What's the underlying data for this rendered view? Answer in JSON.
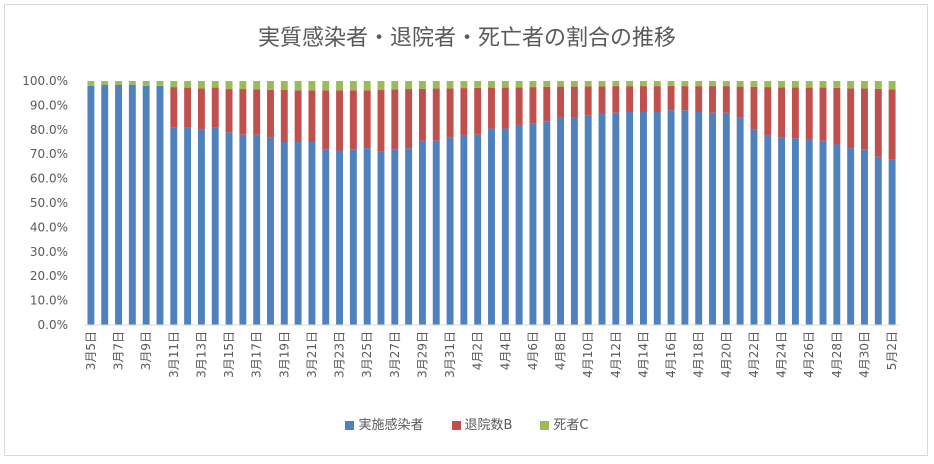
{
  "chart_data": {
    "type": "bar",
    "stacked": true,
    "title": "実質感染者・退院者・死亡者の割合の推移",
    "categories": [
      "3月5日",
      "3月6日",
      "3月7日",
      "3月8日",
      "3月9日",
      "3月10日",
      "3月11日",
      "3月12日",
      "3月13日",
      "3月14日",
      "3月15日",
      "3月16日",
      "3月17日",
      "3月18日",
      "3月19日",
      "3月20日",
      "3月21日",
      "3月22日",
      "3月23日",
      "3月24日",
      "3月25日",
      "3月26日",
      "3月27日",
      "3月28日",
      "3月29日",
      "3月30日",
      "3月31日",
      "4月1日",
      "4月2日",
      "4月3日",
      "4月4日",
      "4月5日",
      "4月6日",
      "4月7日",
      "4月8日",
      "4月9日",
      "4月10日",
      "4月11日",
      "4月12日",
      "4月13日",
      "4月14日",
      "4月15日",
      "4月16日",
      "4月17日",
      "4月18日",
      "4月19日",
      "4月20日",
      "4月21日",
      "4月22日",
      "4月23日",
      "4月24日",
      "4月25日",
      "4月26日",
      "4月27日",
      "4月28日",
      "4月29日",
      "4月30日",
      "5月1日",
      "5月2日"
    ],
    "x_tick_labels": [
      "3月5日",
      "",
      "3月7日",
      "",
      "3月9日",
      "",
      "3月11日",
      "",
      "3月13日",
      "",
      "3月15日",
      "",
      "3月17日",
      "",
      "3月19日",
      "",
      "3月21日",
      "",
      "3月23日",
      "",
      "3月25日",
      "",
      "3月27日",
      "",
      "3月29日",
      "",
      "3月31日",
      "",
      "4月2日",
      "",
      "4月4日",
      "",
      "4月6日",
      "",
      "4月8日",
      "",
      "4月10日",
      "",
      "4月12日",
      "",
      "4月14日",
      "",
      "4月16日",
      "",
      "4月18日",
      "",
      "4月20日",
      "",
      "4月22日",
      "",
      "4月24日",
      "",
      "4月26日",
      "",
      "4月28日",
      "",
      "4月30日",
      "",
      "5月2日"
    ],
    "y_tick_labels": [
      "0.0%",
      "10.0%",
      "20.0%",
      "30.0%",
      "40.0%",
      "50.0%",
      "60.0%",
      "70.0%",
      "80.0%",
      "90.0%",
      "100.0%"
    ],
    "ylim": [
      0,
      100
    ],
    "y_unit": "%",
    "grid": false,
    "legend_position": "bottom",
    "series": [
      {
        "name": "実施感染者",
        "color": "#4F81BD",
        "values": [
          98.0,
          98.5,
          98.5,
          98.5,
          98.0,
          98.0,
          81.0,
          81.0,
          80.0,
          81.0,
          79.0,
          78.0,
          78.0,
          77.0,
          75.0,
          75.0,
          75.0,
          72.0,
          71.5,
          72.0,
          72.5,
          71.0,
          72.0,
          72.5,
          75.5,
          75.5,
          77.0,
          77.5,
          78.0,
          80.5,
          80.5,
          82.0,
          82.5,
          83.5,
          85.0,
          85.0,
          86.0,
          86.5,
          87.0,
          87.5,
          87.5,
          87.5,
          88.0,
          88.0,
          87.5,
          87.0,
          87.0,
          85.0,
          80.0,
          77.5,
          77.0,
          76.5,
          76.0,
          75.5,
          74.0,
          72.5,
          72.0,
          69.0,
          68.0
        ]
      },
      {
        "name": "退院数B",
        "color": "#C0504D",
        "values": [
          0.0,
          0.0,
          0.0,
          0.0,
          0.0,
          0.0,
          16.5,
          16.3,
          17.0,
          16.3,
          17.7,
          18.7,
          18.5,
          19.4,
          21.3,
          21.2,
          21.2,
          24.2,
          24.7,
          24.2,
          23.7,
          25.3,
          24.6,
          24.2,
          21.3,
          21.4,
          20.0,
          19.6,
          19.2,
          16.8,
          16.8,
          15.4,
          15.0,
          14.1,
          12.7,
          12.7,
          11.8,
          11.3,
          10.9,
          10.4,
          10.4,
          10.4,
          10.0,
          9.9,
          10.4,
          10.9,
          10.9,
          12.7,
          17.6,
          20.0,
          20.4,
          20.9,
          21.3,
          21.8,
          23.2,
          24.5,
          24.9,
          27.8,
          28.5
        ]
      },
      {
        "name": "死者C",
        "color": "#9BBB59",
        "values": [
          2.0,
          1.5,
          1.5,
          1.5,
          2.0,
          2.0,
          2.5,
          2.7,
          3.0,
          2.7,
          3.3,
          3.3,
          3.5,
          3.6,
          3.7,
          3.8,
          3.8,
          3.8,
          3.8,
          3.8,
          3.8,
          3.7,
          3.4,
          3.3,
          3.2,
          3.1,
          3.0,
          2.9,
          2.8,
          2.7,
          2.7,
          2.6,
          2.5,
          2.4,
          2.3,
          2.3,
          2.2,
          2.2,
          2.1,
          2.1,
          2.1,
          2.1,
          2.0,
          2.1,
          2.1,
          2.1,
          2.1,
          2.3,
          2.4,
          2.5,
          2.6,
          2.6,
          2.7,
          2.7,
          2.8,
          3.0,
          3.1,
          3.2,
          3.5
        ]
      }
    ]
  }
}
